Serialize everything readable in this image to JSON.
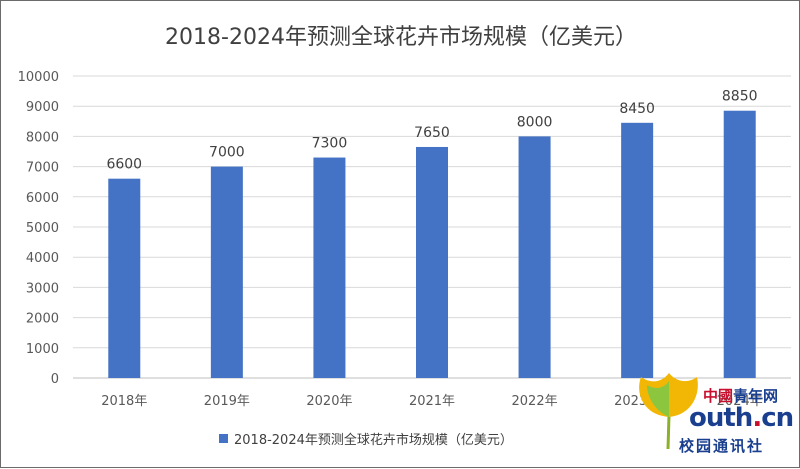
{
  "chart_data": {
    "type": "bar",
    "title": "2018-2024年预测全球花卉市场规模（亿美元）",
    "categories": [
      "2018年",
      "2019年",
      "2020年",
      "2021年",
      "2022年",
      "2023年",
      "2024年"
    ],
    "series": [
      {
        "name": "2018-2024年预测全球花卉市场规模（亿美元）",
        "values": [
          6600,
          7000,
          7300,
          7650,
          8000,
          8450,
          8850
        ]
      }
    ],
    "data_labels": [
      "6600",
      "7000",
      "7300",
      "7650",
      "8000",
      "8450",
      "8850"
    ],
    "ylim": [
      0,
      10000
    ],
    "yticks": [
      0,
      1000,
      2000,
      3000,
      4000,
      5000,
      6000,
      7000,
      8000,
      9000,
      10000
    ],
    "grid": true,
    "legend_position": "bottom",
    "bar_color": "#4472C4"
  },
  "watermark": {
    "line1_a": "中國",
    "line1_b": "青年网",
    "line2_a": "outh",
    "line2_b": ".",
    "line2_c": "cn",
    "line3": "校园通讯社"
  }
}
